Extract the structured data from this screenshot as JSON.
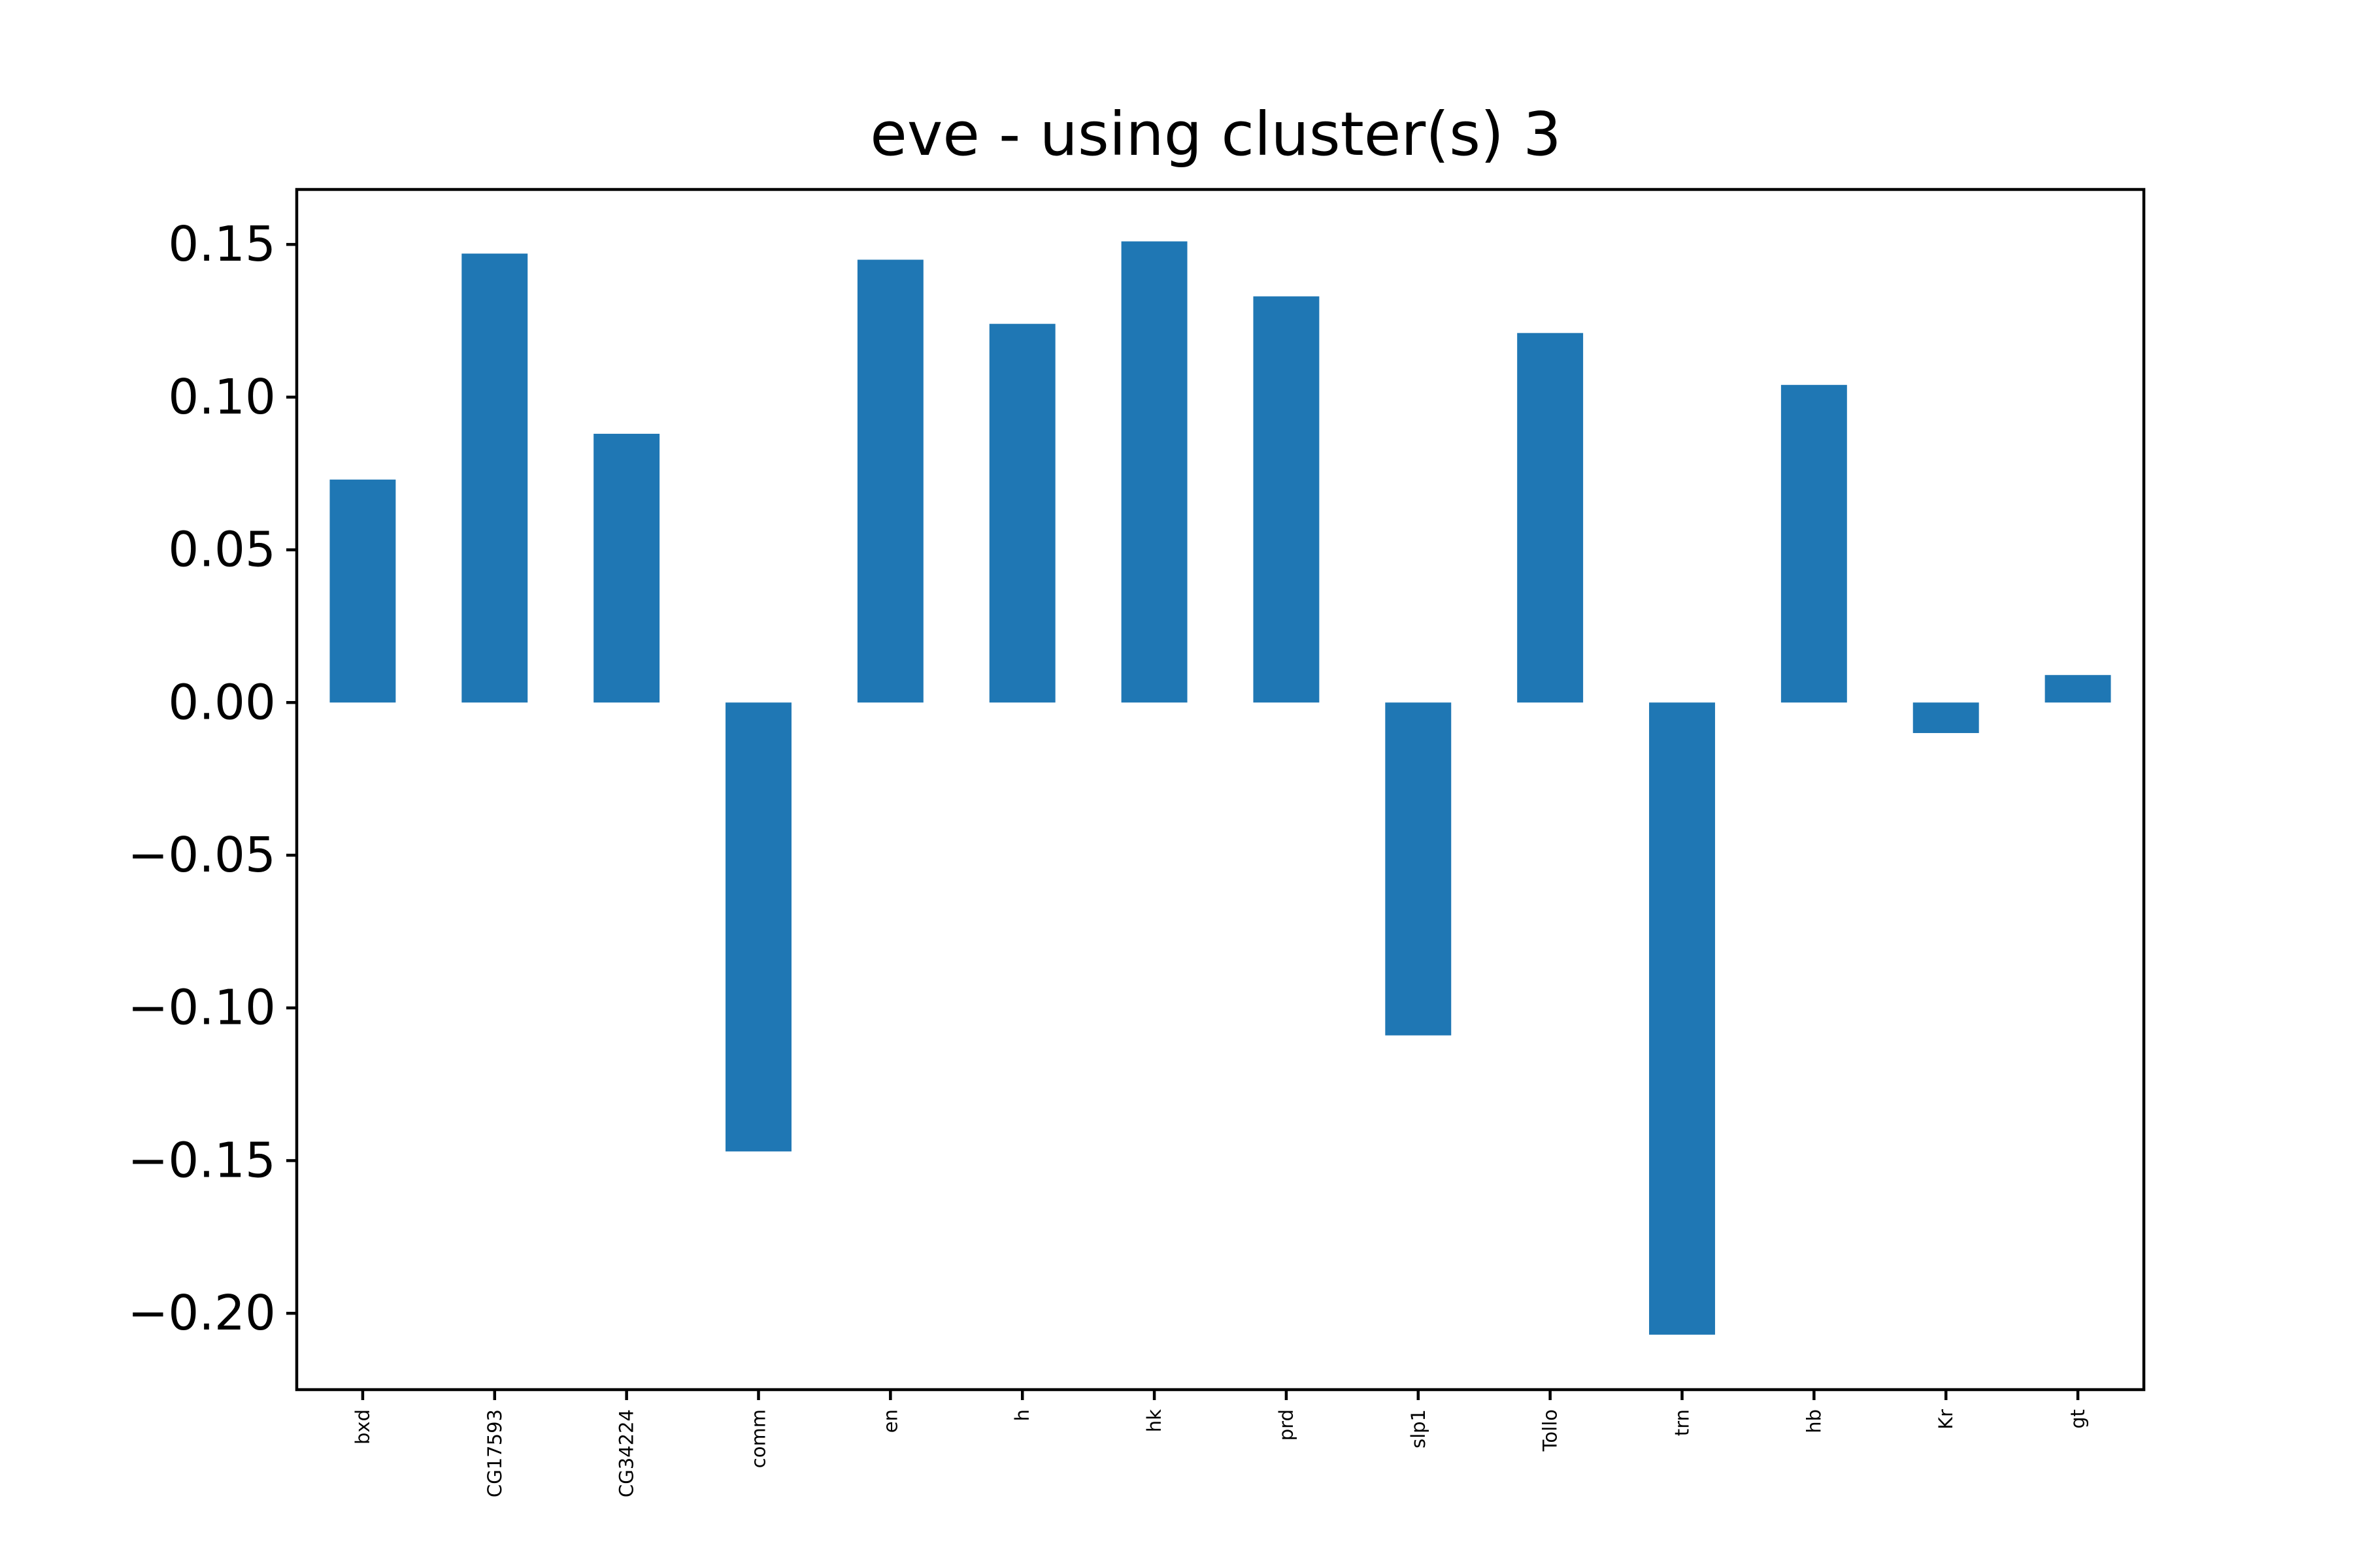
{
  "chart_data": {
    "type": "bar",
    "title": "eve - using cluster(s) 3",
    "xlabel": "",
    "ylabel": "",
    "categories": [
      "bxd",
      "CG17593",
      "CG34224",
      "comm",
      "en",
      "h",
      "hk",
      "prd",
      "slp1",
      "Tollo",
      "trn",
      "hb",
      "Kr",
      "gt"
    ],
    "values": [
      0.073,
      0.147,
      0.088,
      -0.147,
      0.145,
      0.124,
      0.151,
      0.133,
      -0.109,
      0.121,
      -0.207,
      0.104,
      -0.01,
      0.009
    ],
    "ylim": [
      -0.225,
      0.168
    ],
    "yticks": [
      0.15,
      0.1,
      0.05,
      0.0,
      -0.05,
      -0.1,
      -0.15,
      -0.2
    ],
    "ytick_labels": [
      "0.15",
      "0.10",
      "0.05",
      "0.00",
      "−0.05",
      "−0.10",
      "−0.15",
      "−0.20"
    ],
    "grid": false,
    "bar_color": "#1f77b4"
  }
}
